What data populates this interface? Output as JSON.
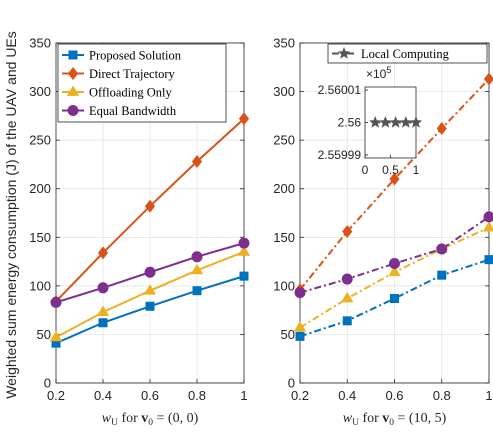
{
  "ylabel": "Weighted sum energy consumption (J) of the UAV and UEs",
  "colors": {
    "proposed": "#0072BD",
    "direct": "#D95319",
    "offloading": "#EDB120",
    "equal": "#7E2F8E",
    "local": "#555555",
    "axis": "#262626"
  },
  "chart_data": [
    {
      "type": "line",
      "panel": "left",
      "xlabel_main": "w",
      "xlabel_sub": "U",
      "xlabel_rest": " for ",
      "xlabel_vec": "v",
      "xlabel_vec_sub": "0",
      "xlabel_value": " = (0, 0)",
      "x": [
        0.2,
        0.4,
        0.6,
        0.8,
        1.0
      ],
      "x_tick_labels": [
        "0.2",
        "0.4",
        "0.6",
        "0.8",
        "1"
      ],
      "xlim": [
        0.2,
        1.0
      ],
      "ylim": [
        0,
        350
      ],
      "y_ticks": [
        0,
        50,
        100,
        150,
        200,
        250,
        300,
        350
      ],
      "y_tick_labels": [
        "0",
        "50",
        "100",
        "150",
        "200",
        "250",
        "300",
        "350"
      ],
      "grid": true,
      "legend_position": "top-left",
      "series": [
        {
          "name": "Proposed Solution",
          "key": "proposed",
          "marker": "square",
          "dash": "solid",
          "values": [
            41,
            62,
            79,
            95,
            110
          ]
        },
        {
          "name": "Direct Trajectory",
          "key": "direct",
          "marker": "diamond",
          "dash": "solid",
          "values": [
            84,
            134,
            182,
            228,
            272
          ]
        },
        {
          "name": "Offloading Only",
          "key": "offloading",
          "marker": "triangle",
          "dash": "solid",
          "values": [
            47,
            73,
            95,
            116,
            135
          ]
        },
        {
          "name": "Equal Bandwidth",
          "key": "equal",
          "marker": "circle",
          "dash": "solid",
          "values": [
            83,
            98,
            114,
            130,
            144
          ]
        }
      ]
    },
    {
      "type": "line",
      "panel": "right",
      "xlabel_main": "w",
      "xlabel_sub": "U",
      "xlabel_rest": " for ",
      "xlabel_vec": "v",
      "xlabel_vec_sub": "0",
      "xlabel_value": " = (10, 5)",
      "x": [
        0.2,
        0.4,
        0.6,
        0.8,
        1.0
      ],
      "x_tick_labels": [
        "0.2",
        "0.4",
        "0.6",
        "0.8",
        "1"
      ],
      "xlim": [
        0.2,
        1.0
      ],
      "ylim": [
        0,
        350
      ],
      "y_ticks": [
        0,
        50,
        100,
        150,
        200,
        250,
        300,
        350
      ],
      "y_tick_labels": [
        "0",
        "50",
        "100",
        "150",
        "200",
        "250",
        "300",
        "350"
      ],
      "grid": true,
      "legend_position": "top-right",
      "series": [
        {
          "key": "proposed",
          "marker": "square",
          "dash": "dashdot",
          "values": [
            48,
            64,
            87,
            111,
            127
          ]
        },
        {
          "key": "direct",
          "marker": "diamond",
          "dash": "dashdot",
          "values": [
            96,
            156,
            210,
            262,
            313
          ]
        },
        {
          "key": "offloading",
          "marker": "triangle",
          "dash": "dashdot",
          "values": [
            57,
            87,
            114,
            138,
            160
          ]
        },
        {
          "key": "equal",
          "marker": "circle",
          "dash": "dashdot",
          "values": [
            93,
            107,
            123,
            138,
            171
          ]
        }
      ],
      "legend": [
        {
          "name": "Local Computing",
          "key": "local",
          "marker": "star",
          "dash": "dashdot"
        }
      ],
      "inset": {
        "type": "line",
        "series": [
          {
            "name": "Local Computing",
            "key": "local",
            "marker": "star",
            "x": [
              0.2,
              0.4,
              0.6,
              0.8,
              1.0
            ],
            "values": [
              256000,
              256000,
              256000,
              256000,
              256000
            ]
          }
        ],
        "exponent_label": "×10",
        "exponent_power": "5",
        "xlim": [
          0,
          1
        ],
        "ylim": [
          2.55999,
          2.56001
        ],
        "y_ticks": [
          2.55999,
          2.56,
          2.56001
        ],
        "y_tick_labels": [
          "2.55999",
          "2.56",
          "2.56001"
        ],
        "x_ticks": [
          0,
          0.5,
          1
        ],
        "x_tick_labels": [
          "0",
          "0.5",
          "1"
        ]
      }
    }
  ]
}
